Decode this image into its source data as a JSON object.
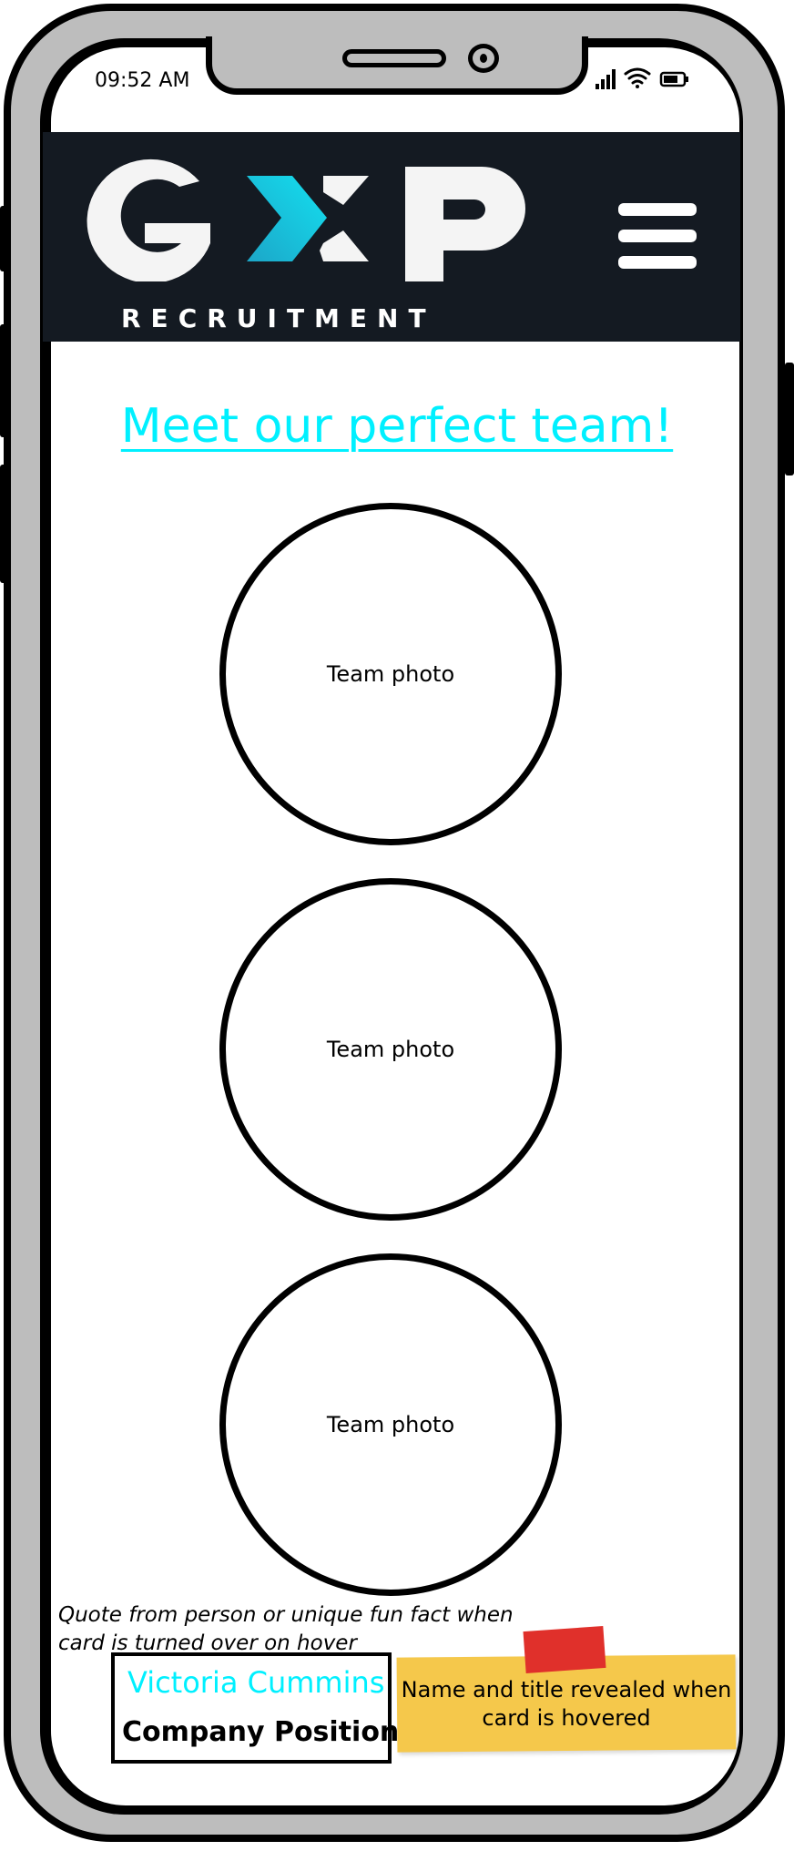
{
  "status_bar": {
    "time": "09:52 AM",
    "icons": [
      "signal-icon",
      "wifi-icon",
      "battery-icon"
    ]
  },
  "header": {
    "logo_text": "GXP",
    "logo_subtitle": "RECRUITMENT",
    "colors": {
      "background": "#141a22",
      "logo": "#ffffff",
      "accent": "#00c0d8"
    },
    "menu_icon": "hamburger-menu-icon"
  },
  "main": {
    "headline": "Meet our perfect team!",
    "headline_color": "#00f0ff",
    "team": [
      {
        "label": "Team photo"
      },
      {
        "label": "Team photo"
      },
      {
        "label": "Team photo"
      }
    ]
  },
  "annotations": {
    "quote_note": "Quote from person or unique fun fact when card is turned over on hover",
    "card": {
      "name": "Victoria Cummins",
      "position": "Company Position"
    },
    "sticky_note": "Name and title revealed when card is hovered",
    "colors": {
      "sticky": "#f5c84b",
      "tape": "#e0302b"
    }
  }
}
